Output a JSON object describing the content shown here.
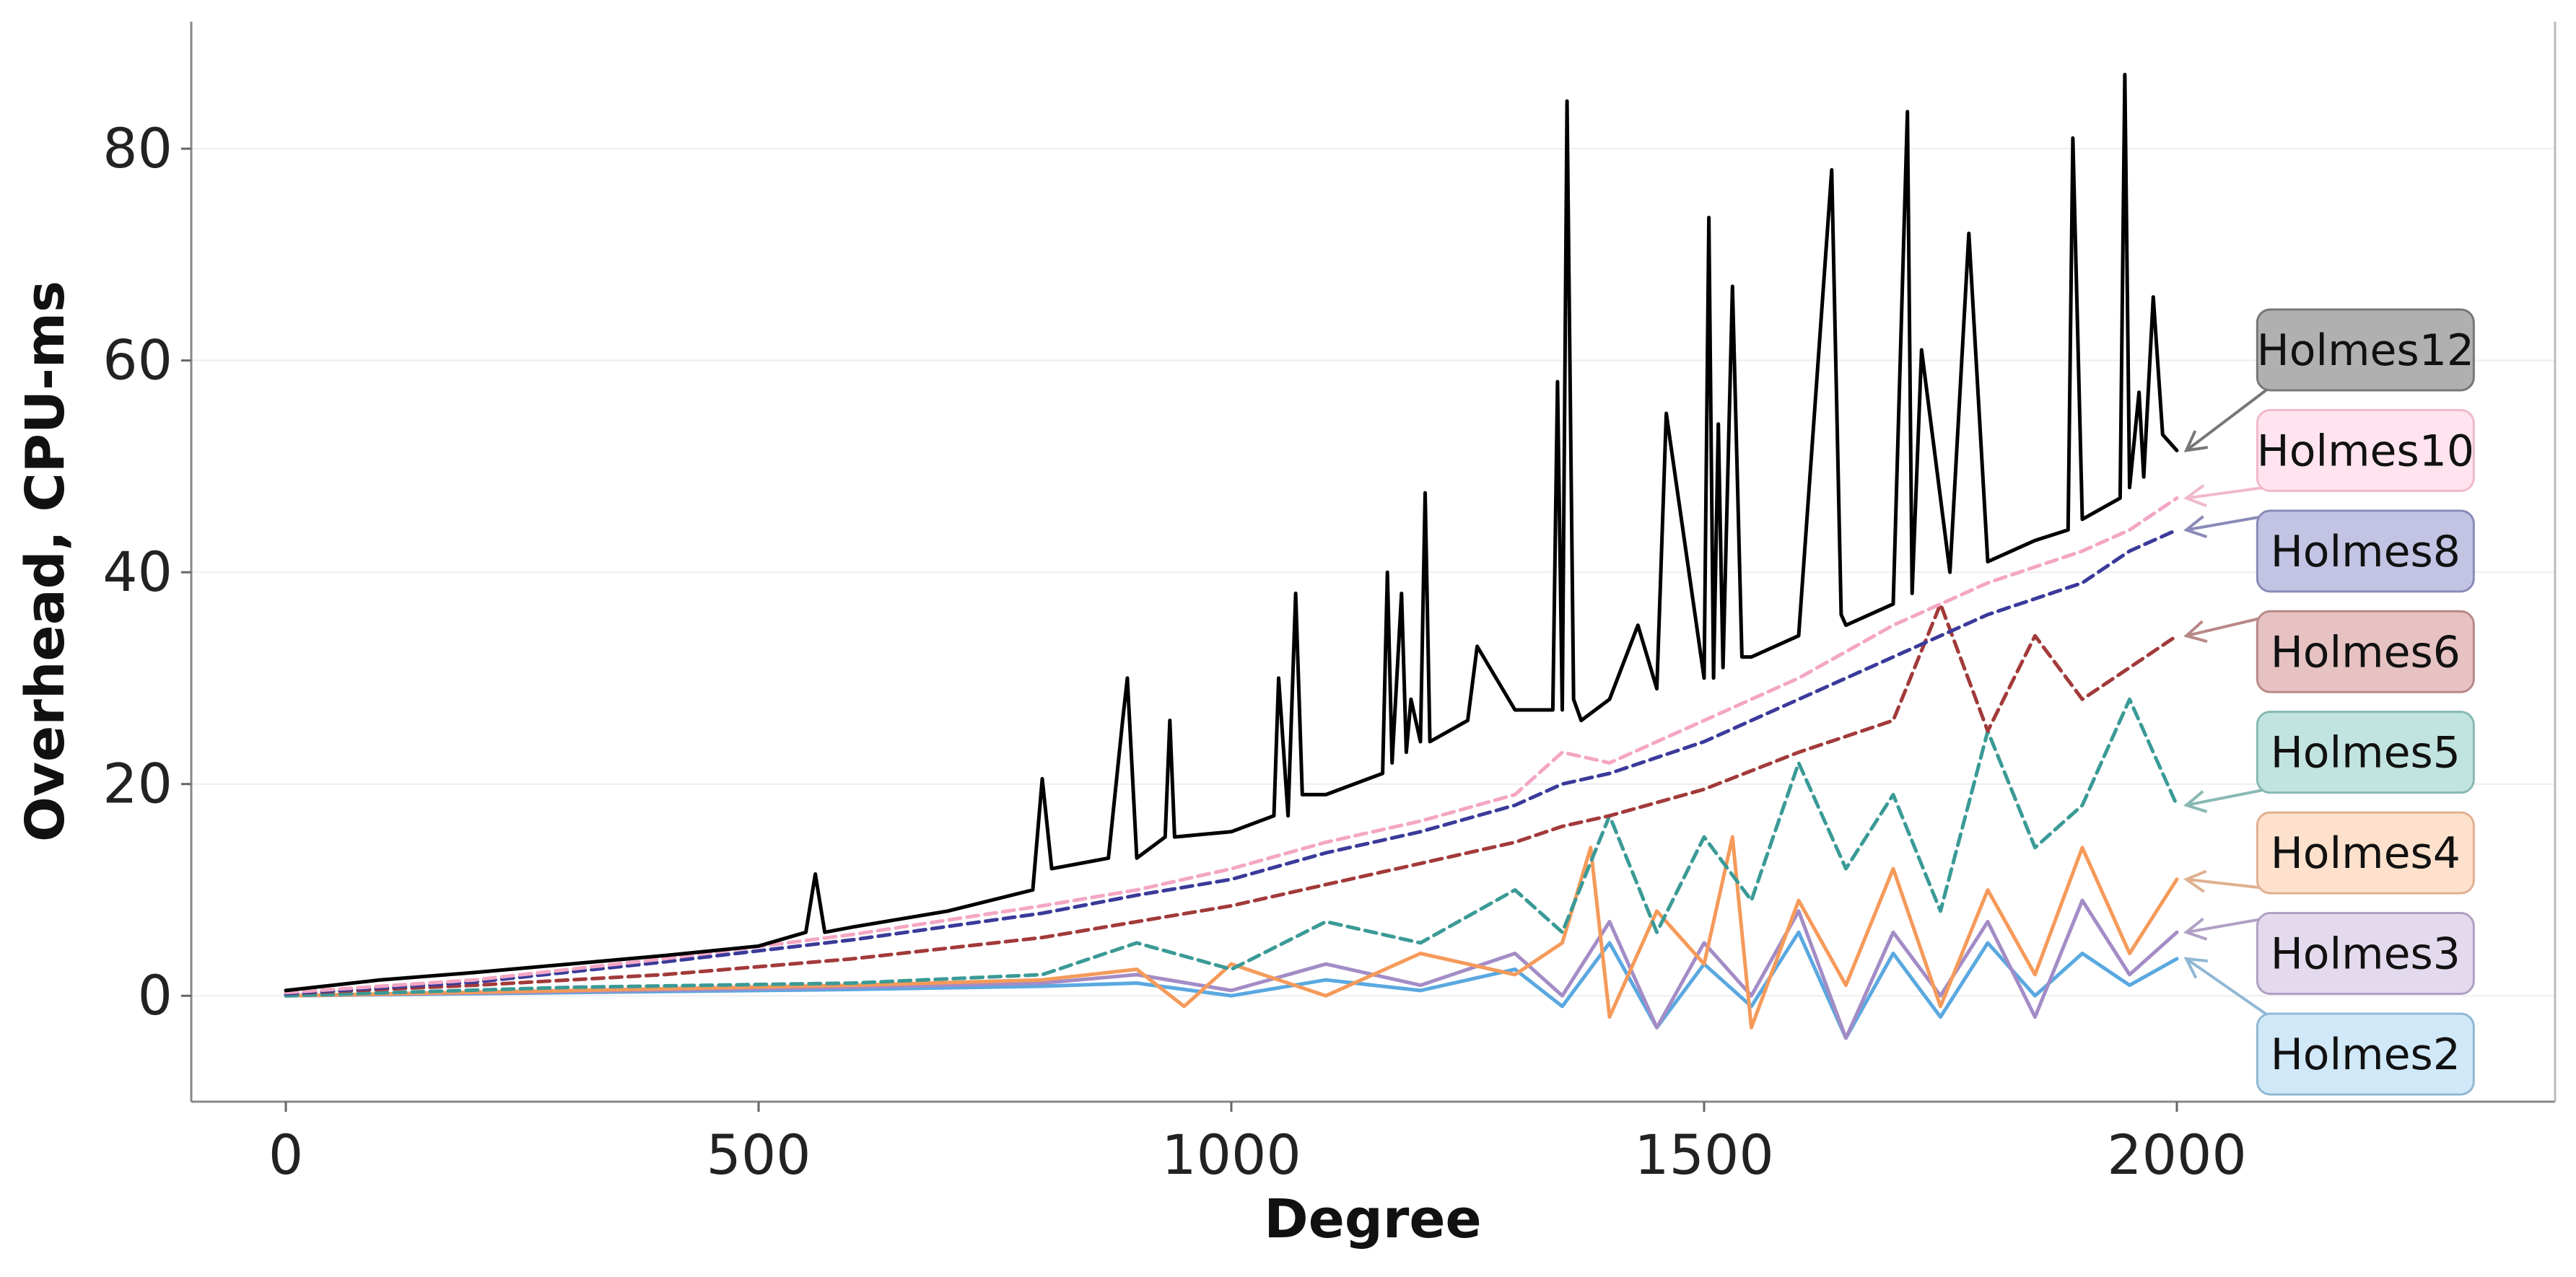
{
  "chart_data": {
    "type": "line",
    "title": "",
    "xlabel": "Degree",
    "ylabel": "Overhead, CPU-ms",
    "xlim": [
      -100,
      2400
    ],
    "ylim": [
      -10,
      92
    ],
    "x_ticks": [
      "0",
      "500",
      "1000",
      "1500",
      "2000"
    ],
    "x_tick_values": [
      0,
      500,
      1000,
      1500,
      2000
    ],
    "y_ticks": [
      "0",
      "20",
      "40",
      "60",
      "80"
    ],
    "y_tick_values": [
      0,
      20,
      40,
      60,
      80
    ],
    "grid": "horizontal",
    "legend_placement": "right, labels at line ends with arrows",
    "series": [
      {
        "name": "Holmes12",
        "color": "#000000",
        "style": "solid",
        "label_face": "#b0b0b0",
        "label_edge": "#777777",
        "label_y": 61,
        "x": [
          0,
          100,
          200,
          300,
          400,
          500,
          550,
          560,
          570,
          600,
          700,
          790,
          800,
          810,
          870,
          885,
          890,
          900,
          930,
          935,
          940,
          1000,
          1045,
          1050,
          1060,
          1068,
          1075,
          1100,
          1160,
          1165,
          1170,
          1180,
          1185,
          1190,
          1200,
          1205,
          1210,
          1250,
          1260,
          1300,
          1340,
          1345,
          1350,
          1355,
          1362,
          1370,
          1400,
          1430,
          1450,
          1460,
          1500,
          1505,
          1510,
          1515,
          1520,
          1530,
          1540,
          1550,
          1600,
          1635,
          1645,
          1650,
          1700,
          1715,
          1720,
          1730,
          1760,
          1780,
          1800,
          1850,
          1885,
          1890,
          1900,
          1940,
          1945,
          1950,
          1960,
          1965,
          1975,
          1985,
          2000
        ],
        "y": [
          0.5,
          1.5,
          2.2,
          3,
          3.8,
          4.7,
          6,
          11.5,
          6,
          6.5,
          8,
          10,
          20.5,
          12,
          13,
          26,
          30,
          13,
          15,
          26,
          15,
          15.5,
          17,
          30,
          17,
          38,
          19,
          19,
          21,
          40,
          22,
          38,
          23,
          28,
          24,
          47.5,
          24,
          26,
          33,
          27,
          27,
          58,
          27,
          84.5,
          28,
          26,
          28,
          35,
          29,
          55,
          30,
          73.5,
          30,
          54,
          31,
          67,
          32,
          32,
          34,
          78,
          36,
          35,
          37,
          83.5,
          38,
          61,
          40,
          72,
          41,
          43,
          44,
          81,
          45,
          47,
          87,
          48,
          57,
          49,
          66,
          53,
          51.5
        ]
      },
      {
        "name": "Holmes10",
        "color": "#f4a6c4",
        "style": "dashed",
        "label_face": "#ffe4ef",
        "label_edge": "#f0b8cc",
        "label_y": 51.5,
        "x": [
          0,
          200,
          400,
          600,
          800,
          900,
          1000,
          1100,
          1200,
          1300,
          1350,
          1400,
          1500,
          1600,
          1700,
          1800,
          1900,
          1950,
          2000
        ],
        "y": [
          0.3,
          1.5,
          3.5,
          5.8,
          8.5,
          10,
          12,
          14.5,
          16.5,
          19,
          23,
          22,
          26,
          30,
          35,
          39,
          42,
          44,
          47
        ]
      },
      {
        "name": "Holmes8",
        "color": "#3a3a9a",
        "style": "dashed",
        "label_face": "#c3c3e4",
        "label_edge": "#8a8ab8",
        "label_y": 42,
        "x": [
          0,
          200,
          400,
          600,
          800,
          900,
          1000,
          1100,
          1200,
          1300,
          1350,
          1400,
          1500,
          1600,
          1700,
          1800,
          1900,
          1950,
          2000
        ],
        "y": [
          0.2,
          1.3,
          3.2,
          5.3,
          7.8,
          9.5,
          11,
          13.5,
          15.5,
          18,
          20,
          21,
          24,
          28,
          32,
          36,
          39,
          42,
          44
        ]
      },
      {
        "name": "Holmes6",
        "color": "#a23a3a",
        "style": "dashed",
        "label_face": "#e6c2c2",
        "label_edge": "#b88888",
        "label_y": 32.5,
        "x": [
          0,
          200,
          400,
          600,
          700,
          800,
          900,
          1000,
          1100,
          1200,
          1300,
          1350,
          1400,
          1500,
          1600,
          1700,
          1750,
          1800,
          1850,
          1900,
          1950,
          2000
        ],
        "y": [
          0.2,
          1,
          2,
          3.5,
          4.5,
          5.5,
          7,
          8.5,
          10.5,
          12.5,
          14.5,
          16,
          17,
          19.5,
          23,
          26,
          37,
          25,
          34,
          28,
          31,
          34
        ]
      },
      {
        "name": "Holmes5",
        "color": "#3a9a96",
        "style": "dashed",
        "label_face": "#c2e4e1",
        "label_edge": "#88b8b4",
        "label_y": 23,
        "x": [
          0,
          300,
          600,
          800,
          900,
          1000,
          1100,
          1200,
          1300,
          1350,
          1400,
          1450,
          1500,
          1550,
          1600,
          1650,
          1700,
          1750,
          1800,
          1850,
          1900,
          1950,
          2000
        ],
        "y": [
          0,
          0.8,
          1.2,
          2,
          5,
          2.5,
          7,
          5,
          10,
          6,
          17,
          6,
          15,
          9,
          22,
          12,
          19,
          8,
          25,
          14,
          18,
          28,
          18
        ]
      },
      {
        "name": "Holmes4",
        "color": "#f59a5a",
        "style": "solid",
        "label_face": "#fde1cc",
        "label_edge": "#e0b090",
        "label_y": 13.5,
        "x": [
          0,
          300,
          600,
          800,
          900,
          950,
          1000,
          1100,
          1200,
          1300,
          1350,
          1380,
          1400,
          1450,
          1500,
          1530,
          1550,
          1600,
          1650,
          1700,
          1750,
          1800,
          1850,
          1900,
          1950,
          2000
        ],
        "y": [
          0,
          0.5,
          1,
          1.5,
          2.5,
          -1,
          3,
          0,
          4,
          2,
          5,
          14,
          -2,
          8,
          3,
          15,
          -3,
          9,
          1,
          12,
          -1,
          10,
          2,
          14,
          4,
          11
        ]
      },
      {
        "name": "Holmes3",
        "color": "#a38cc6",
        "style": "solid",
        "label_face": "#e3daed",
        "label_edge": "#b0a0c4",
        "label_y": 4,
        "x": [
          0,
          300,
          600,
          800,
          900,
          1000,
          1100,
          1200,
          1300,
          1350,
          1400,
          1450,
          1500,
          1550,
          1600,
          1650,
          1700,
          1750,
          1800,
          1850,
          1900,
          1950,
          2000
        ],
        "y": [
          0,
          0.4,
          0.8,
          1.2,
          2,
          0.5,
          3,
          1,
          4,
          0,
          7,
          -3,
          5,
          0,
          8,
          -4,
          6,
          0,
          7,
          -2,
          9,
          2,
          6
        ]
      },
      {
        "name": "Holmes2",
        "color": "#5aa8e0",
        "style": "solid",
        "label_face": "#d0e8f8",
        "label_edge": "#90b8d4",
        "label_y": -5.5,
        "x": [
          0,
          300,
          600,
          800,
          900,
          1000,
          1100,
          1200,
          1300,
          1350,
          1400,
          1450,
          1500,
          1550,
          1600,
          1650,
          1700,
          1750,
          1800,
          1850,
          1900,
          1950,
          2000
        ],
        "y": [
          0,
          0.3,
          0.6,
          0.9,
          1.2,
          0,
          1.5,
          0.5,
          2.5,
          -1,
          5,
          -3,
          3,
          -1,
          6,
          -4,
          4,
          -2,
          5,
          0,
          4,
          1,
          3.5
        ]
      }
    ]
  }
}
